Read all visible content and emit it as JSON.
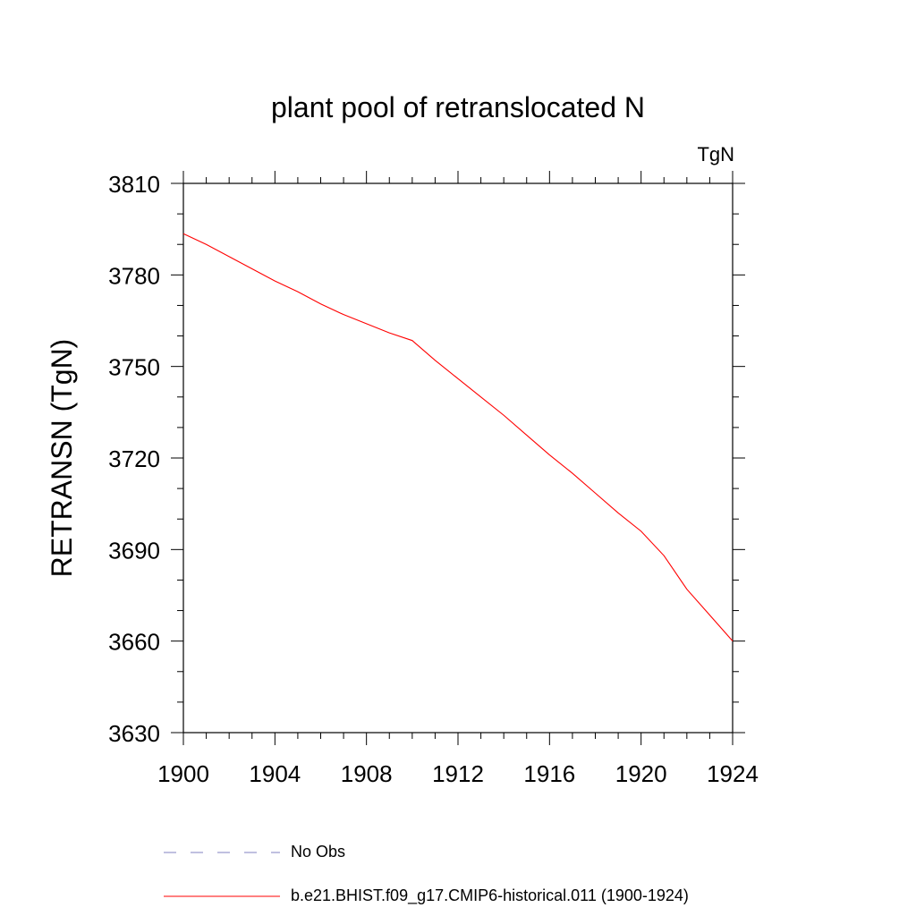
{
  "chart_data": {
    "type": "line",
    "title": "plant pool of retranslocated N",
    "units_label": "TgN",
    "ylabel": "RETRANSN  (TgN)",
    "xlabel": "",
    "xlim": [
      1900,
      1924
    ],
    "ylim": [
      3630,
      3810
    ],
    "x_ticks": [
      "1900",
      "1904",
      "1908",
      "1912",
      "1916",
      "1920",
      "1924"
    ],
    "y_ticks": [
      "3810",
      "3780",
      "3750",
      "3720",
      "3690",
      "3660",
      "3630"
    ],
    "grid": false,
    "legend_position": "bottom",
    "series": [
      {
        "name": "b.e21.BHIST.f09_g17.CMIP6-historical.011 (1900-1924)",
        "color": "#ff0000",
        "style": "solid",
        "x": [
          1900,
          1901,
          1902,
          1903,
          1904,
          1905,
          1906,
          1907,
          1908,
          1909,
          1910,
          1911,
          1912,
          1913,
          1914,
          1915,
          1916,
          1917,
          1918,
          1919,
          1920,
          1921,
          1922,
          1923,
          1924
        ],
        "values": [
          3793.5,
          3790.0,
          3786.0,
          3782.0,
          3778.0,
          3774.5,
          3770.5,
          3767.0,
          3764.0,
          3761.0,
          3758.5,
          3752.0,
          3746.0,
          3740.0,
          3734.0,
          3727.5,
          3721.0,
          3715.0,
          3708.5,
          3702.0,
          3696.0,
          3688.0,
          3677.0,
          3668.5,
          3660.0
        ]
      }
    ],
    "legend": [
      {
        "label": "No Obs",
        "color": "#8080c0",
        "style": "dashed"
      },
      {
        "label": "b.e21.BHIST.f09_g17.CMIP6-historical.011 (1900-1924)",
        "color": "#ff0000",
        "style": "solid"
      }
    ]
  }
}
